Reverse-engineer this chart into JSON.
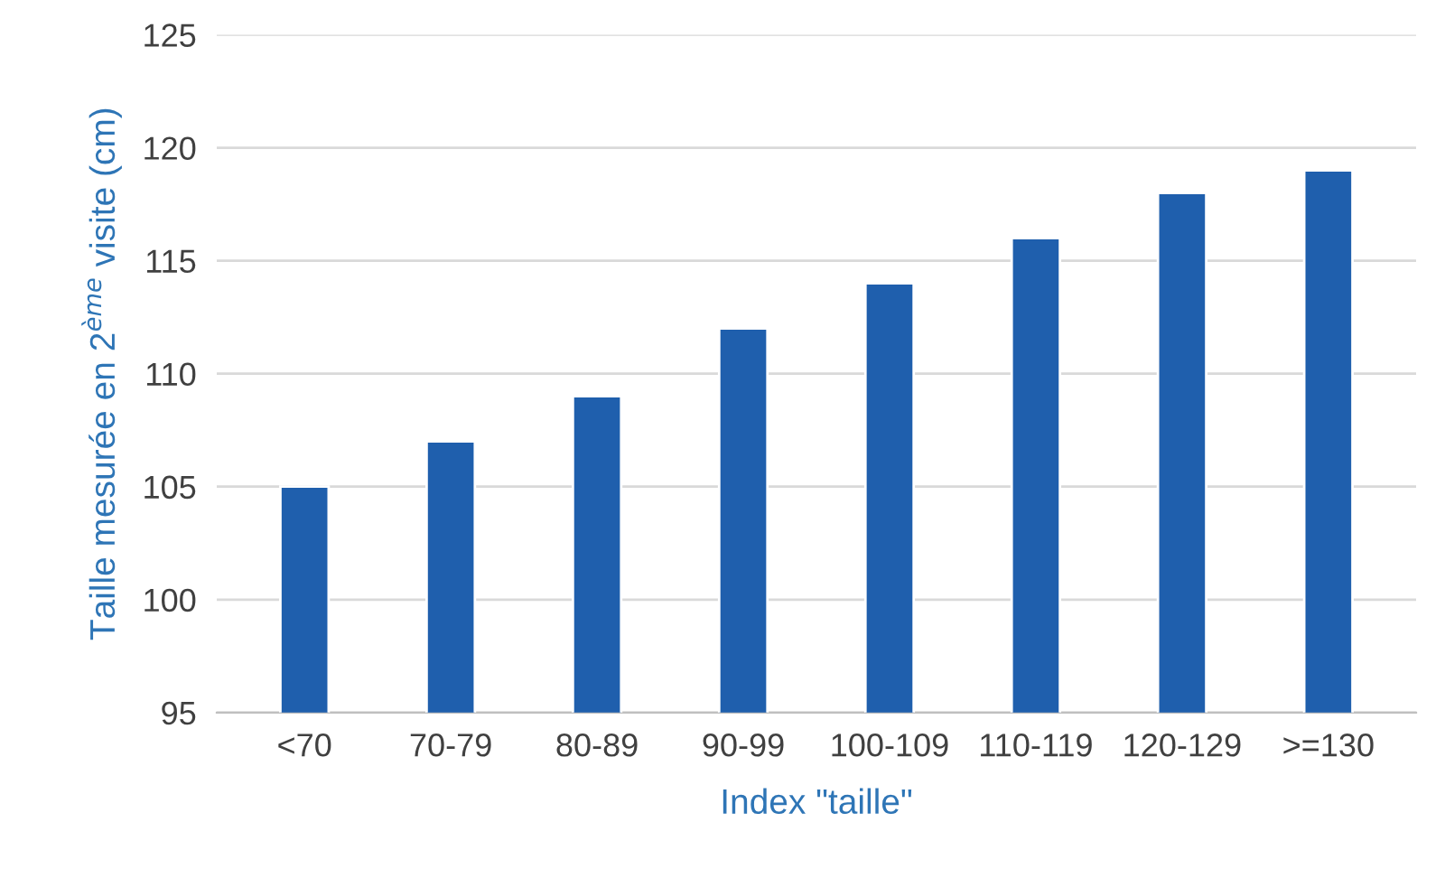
{
  "chart_data": {
    "type": "bar",
    "xlabel": "Index \"taille\"",
    "ylabel": "Taille mesurée en 2$^{ème}$ visite (cm)",
    "categories": [
      "<70",
      "70-79",
      "80-89",
      "90-99",
      "100-109",
      "110-119",
      "120-129",
      ">=130"
    ],
    "values": [
      105,
      107,
      109,
      112,
      114,
      116,
      118,
      119
    ],
    "color": "#1f5fad",
    "ylim": [
      95,
      125
    ],
    "yticks": [
      95,
      100,
      105,
      110,
      115,
      120,
      125
    ],
    "grid": "y"
  }
}
